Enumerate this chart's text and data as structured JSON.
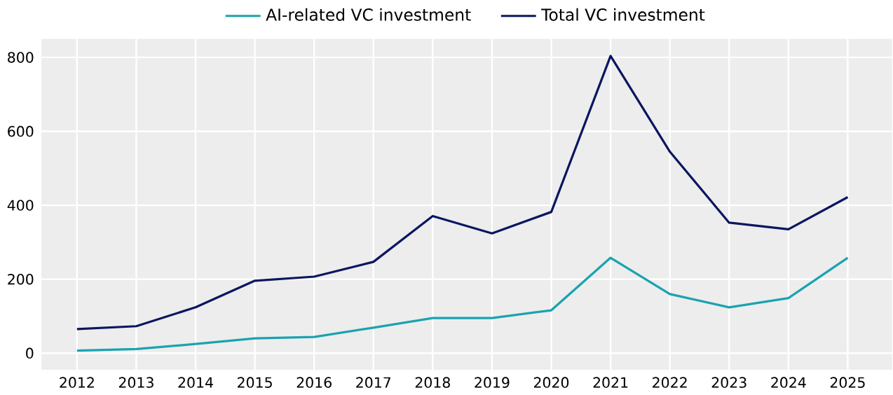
{
  "chart_data": {
    "type": "line",
    "categories": [
      "2012",
      "2013",
      "2014",
      "2015",
      "2016",
      "2017",
      "2018",
      "2019",
      "2020",
      "2021",
      "2022",
      "2023",
      "2024",
      "2025"
    ],
    "series": [
      {
        "name": "AI-related VC investment",
        "color": "#1aa3b0",
        "values": [
          7,
          11,
          25,
          40,
          44,
          69,
          95,
          95,
          116,
          258,
          160,
          124,
          149,
          258
        ]
      },
      {
        "name": "Total VC investment",
        "color": "#0b1660",
        "values": [
          65,
          73,
          124,
          196,
          207,
          247,
          371,
          324,
          382,
          804,
          545,
          353,
          335,
          422
        ]
      }
    ],
    "ylim": [
      -45,
      850
    ],
    "yticks": [
      0,
      200,
      400,
      600,
      800
    ],
    "grid": true,
    "legend": "top",
    "marker": "none",
    "line_style": "solid"
  }
}
